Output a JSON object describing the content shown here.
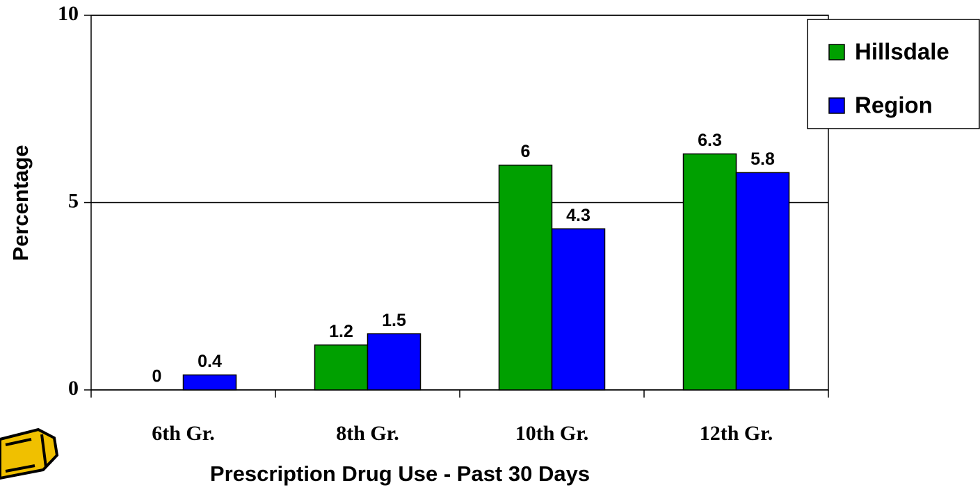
{
  "chart_data": {
    "type": "bar",
    "x_label": "Prescription Drug Use - Past 30 Days",
    "y_label": "Percentage",
    "categories": [
      "6th Gr.",
      "8th Gr.",
      "10th Gr.",
      "12th Gr."
    ],
    "series": [
      {
        "name": "Hillsdale",
        "color": "#00a000",
        "values": [
          0,
          1.2,
          6,
          6.3
        ]
      },
      {
        "name": "Region",
        "color": "#0000ff",
        "values": [
          0.4,
          1.5,
          4.3,
          5.8
        ]
      }
    ],
    "ylim": [
      0,
      10
    ],
    "yticks": [
      0,
      5,
      10
    ],
    "grid": true,
    "legend": "upper right"
  }
}
